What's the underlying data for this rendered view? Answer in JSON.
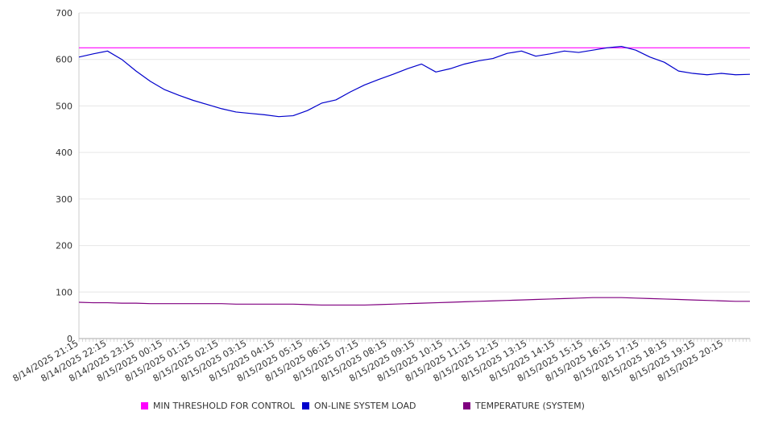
{
  "chart_data": {
    "type": "line",
    "title": "",
    "xlabel": "",
    "ylabel": "",
    "ylim": [
      0,
      700
    ],
    "yticks": [
      0,
      100,
      200,
      300,
      400,
      500,
      600,
      700
    ],
    "grid": "horizontal",
    "legend_position": "bottom",
    "x_tick_labels": [
      "8/14/2025 21:15",
      "8/14/2025 22:15",
      "8/14/2025 23:15",
      "8/15/2025 00:15",
      "8/15/2025 01:15",
      "8/15/2025 02:15",
      "8/15/2025 03:15",
      "8/15/2025 04:15",
      "8/15/2025 05:15",
      "8/15/2025 06:15",
      "8/15/2025 07:15",
      "8/15/2025 08:15",
      "8/15/2025 09:15",
      "8/15/2025 10:15",
      "8/15/2025 11:15",
      "8/15/2025 12:15",
      "8/15/2025 13:15",
      "8/15/2025 14:15",
      "8/15/2025 15:15",
      "8/15/2025 16:15",
      "8/15/2025 17:15",
      "8/15/2025 18:15",
      "8/15/2025 19:15",
      "8/15/2025 20:15"
    ],
    "x": [
      "8/14/2025 21:15",
      "8/14/2025 21:45",
      "8/14/2025 22:15",
      "8/14/2025 22:45",
      "8/14/2025 23:15",
      "8/14/2025 23:45",
      "8/15/2025 00:15",
      "8/15/2025 00:45",
      "8/15/2025 01:15",
      "8/15/2025 01:45",
      "8/15/2025 02:15",
      "8/15/2025 02:45",
      "8/15/2025 03:15",
      "8/15/2025 03:45",
      "8/15/2025 04:15",
      "8/15/2025 04:45",
      "8/15/2025 05:15",
      "8/15/2025 05:45",
      "8/15/2025 06:15",
      "8/15/2025 06:45",
      "8/15/2025 07:15",
      "8/15/2025 07:45",
      "8/15/2025 08:15",
      "8/15/2025 08:45",
      "8/15/2025 09:15",
      "8/15/2025 09:45",
      "8/15/2025 10:15",
      "8/15/2025 10:45",
      "8/15/2025 11:15",
      "8/15/2025 11:45",
      "8/15/2025 12:15",
      "8/15/2025 12:45",
      "8/15/2025 13:15",
      "8/15/2025 13:45",
      "8/15/2025 14:15",
      "8/15/2025 14:45",
      "8/15/2025 15:15",
      "8/15/2025 15:45",
      "8/15/2025 16:15",
      "8/15/2025 16:45",
      "8/15/2025 17:15",
      "8/15/2025 17:45",
      "8/15/2025 18:15",
      "8/15/2025 18:45",
      "8/15/2025 19:15",
      "8/15/2025 19:45",
      "8/15/2025 20:15",
      "8/15/2025 20:45"
    ],
    "series": [
      {
        "name": "MIN THRESHOLD FOR CONTROL",
        "color": "#ff00ff",
        "values": [
          625,
          625,
          625,
          625,
          625,
          625,
          625,
          625,
          625,
          625,
          625,
          625,
          625,
          625,
          625,
          625,
          625,
          625,
          625,
          625,
          625,
          625,
          625,
          625,
          625,
          625,
          625,
          625,
          625,
          625,
          625,
          625,
          625,
          625,
          625,
          625,
          625,
          625,
          625,
          625,
          625,
          625,
          625,
          625,
          625,
          625,
          625,
          625
        ]
      },
      {
        "name": "ON-LINE SYSTEM LOAD",
        "color": "#0000cc",
        "values": [
          605,
          612,
          618,
          600,
          575,
          553,
          535,
          523,
          512,
          503,
          494,
          487,
          484,
          481,
          477,
          479,
          490,
          506,
          513,
          530,
          545,
          557,
          568,
          580,
          590,
          573,
          580,
          590,
          597,
          602,
          613,
          618,
          607,
          612,
          618,
          615,
          620,
          625,
          628,
          620,
          605,
          594,
          575,
          570,
          567,
          570,
          567,
          568
        ]
      },
      {
        "name": "TEMPERATURE (SYSTEM)",
        "color": "#800080",
        "values": [
          78,
          77,
          77,
          76,
          76,
          75,
          75,
          75,
          75,
          75,
          75,
          74,
          74,
          74,
          74,
          74,
          73,
          72,
          72,
          72,
          72,
          73,
          74,
          75,
          76,
          77,
          78,
          79,
          80,
          81,
          82,
          83,
          84,
          85,
          86,
          87,
          88,
          88,
          88,
          87,
          86,
          85,
          84,
          83,
          82,
          81,
          80,
          80
        ]
      }
    ]
  },
  "legend": {
    "items": [
      {
        "label": "MIN THRESHOLD FOR CONTROL",
        "color": "#ff00ff"
      },
      {
        "label": "ON-LINE SYSTEM LOAD",
        "color": "#0000cc"
      },
      {
        "label": "TEMPERATURE (SYSTEM)",
        "color": "#800080"
      }
    ]
  }
}
